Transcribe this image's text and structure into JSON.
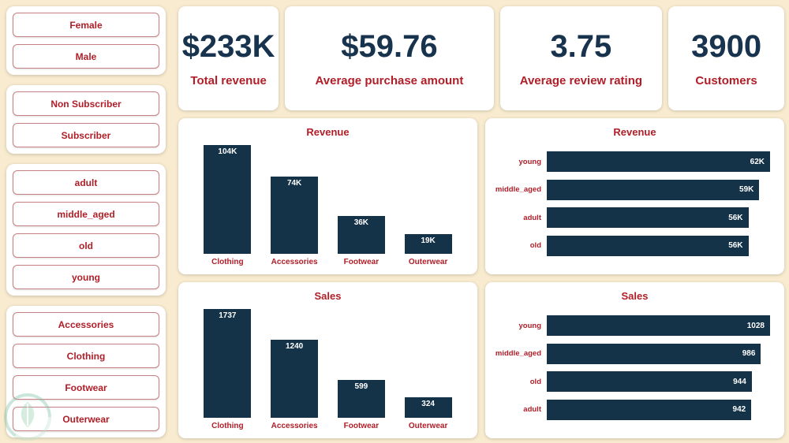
{
  "theme": {
    "background": "#f8ebcf",
    "card_bg": "#ffffff",
    "accent_red": "#b01e28",
    "navy": "#143248"
  },
  "filters": [
    {
      "name": "gender",
      "items": [
        "Female",
        "Male"
      ]
    },
    {
      "name": "subscription",
      "items": [
        "Non Subscriber",
        "Subscriber"
      ]
    },
    {
      "name": "age_group",
      "items": [
        "adult",
        "middle_aged",
        "old",
        "young"
      ]
    },
    {
      "name": "category",
      "items": [
        "Accessories",
        "Clothing",
        "Footwear",
        "Outerwear"
      ]
    }
  ],
  "kpis": [
    {
      "value": "$233K",
      "label": "Total revenue"
    },
    {
      "value": "$59.76",
      "label": "Average purchase amount"
    },
    {
      "value": "3.75",
      "label": "Average review rating"
    },
    {
      "value": "3900",
      "label": "Customers"
    }
  ],
  "chart_data": [
    {
      "type": "bar",
      "orientation": "vertical",
      "title": "Revenue",
      "categories": [
        "Clothing",
        "Accessories",
        "Footwear",
        "Outerwear"
      ],
      "values": [
        104000,
        74000,
        36000,
        19000
      ],
      "labels": [
        "104K",
        "74K",
        "36K",
        "19K"
      ],
      "ylim": [
        0,
        104000
      ],
      "grid": false,
      "legend": "none"
    },
    {
      "type": "bar",
      "orientation": "horizontal",
      "title": "Revenue",
      "categories": [
        "young",
        "middle_aged",
        "adult",
        "old"
      ],
      "values": [
        62000,
        59000,
        56000,
        56000
      ],
      "labels": [
        "62K",
        "59K",
        "56K",
        "56K"
      ],
      "xlim": [
        0,
        62000
      ],
      "grid": false,
      "legend": "none"
    },
    {
      "type": "bar",
      "orientation": "vertical",
      "title": "Sales",
      "categories": [
        "Clothing",
        "Accessories",
        "Footwear",
        "Outerwear"
      ],
      "values": [
        1737,
        1240,
        599,
        324
      ],
      "labels": [
        "1737",
        "1240",
        "599",
        "324"
      ],
      "ylim": [
        0,
        1737
      ],
      "grid": false,
      "legend": "none"
    },
    {
      "type": "bar",
      "orientation": "horizontal",
      "title": "Sales",
      "categories": [
        "young",
        "middle_aged",
        "old",
        "adult"
      ],
      "values": [
        1028,
        986,
        944,
        942
      ],
      "labels": [
        "1028",
        "986",
        "944",
        "942"
      ],
      "xlim": [
        0,
        1028
      ],
      "grid": false,
      "legend": "none"
    }
  ]
}
